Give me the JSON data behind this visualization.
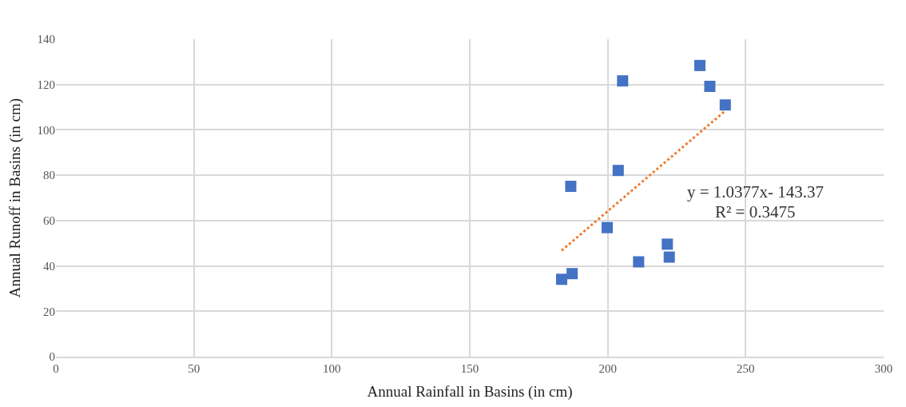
{
  "chart_data": {
    "type": "scatter",
    "xlabel": "Annual Rainfall in Basins (in cm)",
    "ylabel": "Annual Runoff in Basins (in cm)",
    "xlim": [
      0,
      300
    ],
    "xticks": [
      0,
      50,
      100,
      150,
      200,
      250,
      300
    ],
    "ylim": [
      0,
      140
    ],
    "yticks": [
      0,
      20,
      40,
      60,
      80,
      100,
      120,
      140
    ],
    "grid": true,
    "marker": "square",
    "series": [
      {
        "color": "#4472c4",
        "x": [
          183.3,
          187.1,
          186.6,
          199.8,
          203.8,
          205.4,
          211.2,
          221.6,
          222.3,
          233.4,
          237.0,
          242.6
        ],
        "values": [
          34.1,
          36.6,
          75.1,
          56.9,
          82.1,
          121.6,
          41.8,
          49.6,
          43.9,
          128.4,
          119.2,
          111.0
        ]
      },
      {
        "type": "line",
        "color": "#ed7d31",
        "line_style": "dotted",
        "marker": "none",
        "x": [
          183.3,
          242.6
        ],
        "values": [
          46.8,
          108.4
        ]
      }
    ],
    "annotations": [
      "y = 1.0377x- 143.37",
      "R² = 0.3475"
    ]
  }
}
